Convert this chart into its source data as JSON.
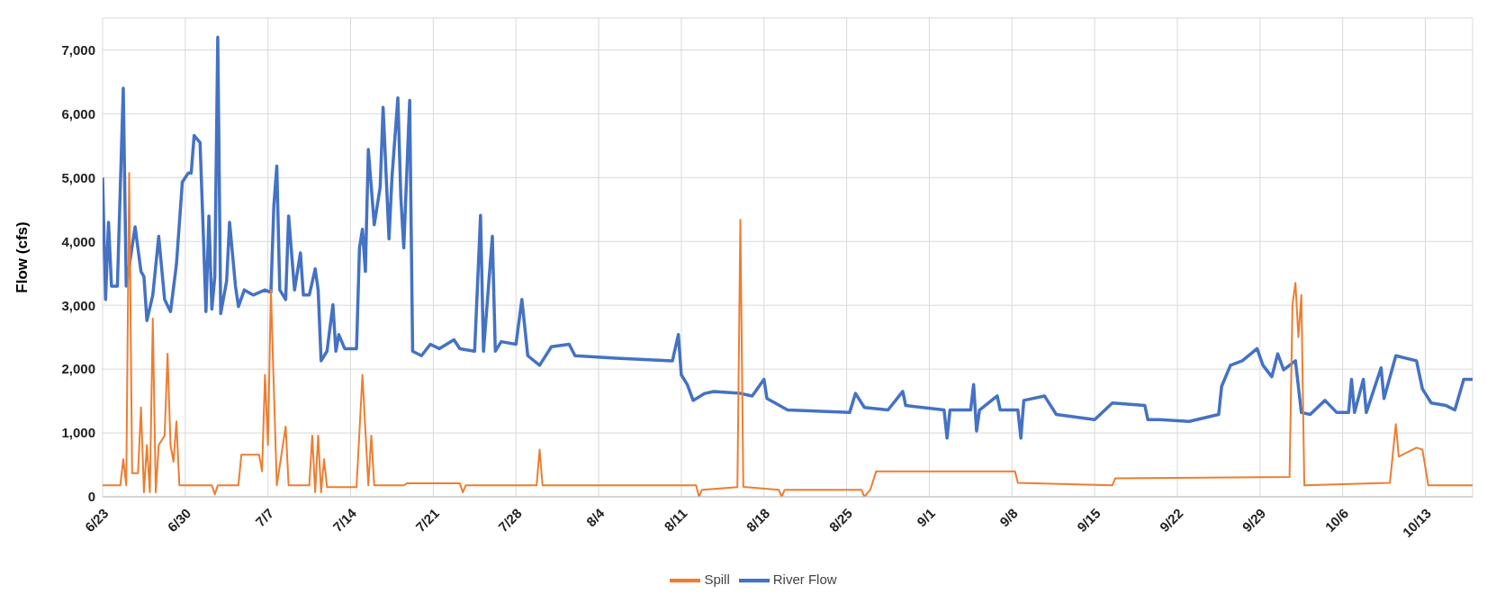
{
  "chart_data": {
    "type": "line",
    "ylabel": "Flow (cfs)",
    "xlim": [
      "--06-23",
      "--10-17"
    ],
    "xticks": [
      {
        "value": "--06-23",
        "label": "6/23"
      },
      {
        "value": "--06-30",
        "label": "6/30"
      },
      {
        "value": "--07-07",
        "label": "7/7"
      },
      {
        "value": "--07-14",
        "label": "7/14"
      },
      {
        "value": "--07-21",
        "label": "7/21"
      },
      {
        "value": "--07-28",
        "label": "7/28"
      },
      {
        "value": "--08-04",
        "label": "8/4"
      },
      {
        "value": "--08-11",
        "label": "8/11"
      },
      {
        "value": "--08-18",
        "label": "8/18"
      },
      {
        "value": "--08-25",
        "label": "8/25"
      },
      {
        "value": "--09-01",
        "label": "9/1"
      },
      {
        "value": "--09-08",
        "label": "9/8"
      },
      {
        "value": "--09-15",
        "label": "9/15"
      },
      {
        "value": "--09-22",
        "label": "9/22"
      },
      {
        "value": "--09-29",
        "label": "9/29"
      },
      {
        "value": "--10-06",
        "label": "10/6"
      },
      {
        "value": "--10-13",
        "label": "10/13"
      }
    ],
    "ylim": [
      0,
      7500
    ],
    "yticks": [
      0,
      {
        "value": 1000,
        "label": "1,000"
      },
      {
        "value": 2000,
        "label": "2,000"
      },
      {
        "value": 3000,
        "label": "3,000"
      },
      {
        "value": 4000,
        "label": "4,000"
      },
      {
        "value": 5000,
        "label": "5,000"
      },
      {
        "value": 6000,
        "label": "6,000"
      },
      {
        "value": 7000,
        "label": "7,000"
      }
    ],
    "grid": true,
    "legend": "bottom",
    "marker": "none",
    "series": [
      {
        "name": "Spill",
        "color": "#ed7d31",
        "x": [
          "--06-23T00:00",
          "--06-24T12:00",
          "--06-24T18:00",
          "--06-25T00:00",
          "--06-25T06:00",
          "--06-25T12:00",
          "--06-26T00:00",
          "--06-26T06:00",
          "--06-26T12:00",
          "--06-26T18:00",
          "--06-27T00:00",
          "--06-27T06:00",
          "--06-27T12:00",
          "--06-27T18:00",
          "--06-28T06:00",
          "--06-28T12:00",
          "--06-28T18:00",
          "--06-29T00:00",
          "--06-29T06:00",
          "--06-29T12:00",
          "--07-02T06:00",
          "--07-02T12:00",
          "--07-02T18:00",
          "--07-04T12:00",
          "--07-04T18:00",
          "--07-06T06:00",
          "--07-06T12:00",
          "--07-06T18:00",
          "--07-07T00:00",
          "--07-07T06:00",
          "--07-07T12:00",
          "--07-07T18:00",
          "--07-08T12:00",
          "--07-08T18:00",
          "--07-10T12:00",
          "--07-10T18:00",
          "--07-11T00:00",
          "--07-11T06:00",
          "--07-11T12:00",
          "--07-11T18:00",
          "--07-12T00:00",
          "--07-14T12:00",
          "--07-15T00:00",
          "--07-15T12:00",
          "--07-15T18:00",
          "--07-16T00:00",
          "--07-18T12:00",
          "--07-18T18:00",
          "--07-23T06:00",
          "--07-23T12:00",
          "--07-23T18:00",
          "--07-29T18:00",
          "--07-30T00:00",
          "--07-30T06:00",
          "--08-06T12:00",
          "--08-12T06:00",
          "--08-12T12:00",
          "--08-12T18:00",
          "--08-15T18:00",
          "--08-16T00:00",
          "--08-16T06:00",
          "--08-16T12:00",
          "--08-19T06:00",
          "--08-19T12:00",
          "--08-19T18:00",
          "--08-26T06:00",
          "--08-26T12:00",
          "--08-27T00:00",
          "--08-27T12:00",
          "--09-08T06:00",
          "--09-08T12:00",
          "--09-16T12:00",
          "--09-16T18:00",
          "--10-01T12:00",
          "--10-01T18:00",
          "--10-02T00:00",
          "--10-02T06:00",
          "--10-02T12:00",
          "--10-02T18:00",
          "--10-10T00:00",
          "--10-10T12:00",
          "--10-10T18:00",
          "--10-12T06:00",
          "--10-12T18:00",
          "--10-13T06:00",
          "--10-17T00:00"
        ],
        "values": [
          180,
          180,
          590,
          180,
          5070,
          370,
          370,
          1400,
          70,
          810,
          70,
          2790,
          70,
          810,
          960,
          2240,
          810,
          550,
          1180,
          180,
          180,
          40,
          180,
          180,
          660,
          660,
          400,
          1910,
          810,
          3240,
          1690,
          180,
          1100,
          180,
          180,
          960,
          70,
          960,
          70,
          590,
          150,
          150,
          1910,
          180,
          960,
          180,
          180,
          210,
          210,
          70,
          180,
          180,
          740,
          180,
          180,
          180,
          0,
          110,
          150,
          4340,
          160,
          150,
          110,
          0,
          110,
          110,
          0,
          110,
          400,
          400,
          220,
          180,
          290,
          310,
          3010,
          3350,
          2500,
          3160,
          180,
          220,
          1140,
          630,
          770,
          740,
          180,
          180
        ]
      },
      {
        "name": "River Flow",
        "color": "#4472c4",
        "x": [
          "--06-23T00:00",
          "--06-23T06:00",
          "--06-23T12:00",
          "--06-23T18:00",
          "--06-24T06:00",
          "--06-24T18:00",
          "--06-25T00:00",
          "--06-25T18:00",
          "--06-26T06:00",
          "--06-26T12:00",
          "--06-26T18:00",
          "--06-27T06:00",
          "--06-27T18:00",
          "--06-28T06:00",
          "--06-28T18:00",
          "--06-29T06:00",
          "--06-29T18:00",
          "--06-30T06:00",
          "--06-30T12:00",
          "--06-30T18:00",
          "--07-01T06:00",
          "--07-01T12:00",
          "--07-01T18:00",
          "--07-02T00:00",
          "--07-02T06:00",
          "--07-02T12:00",
          "--07-02T18:00",
          "--07-03T00:00",
          "--07-03T12:00",
          "--07-03T18:00",
          "--07-04T06:00",
          "--07-04T12:00",
          "--07-05T00:00",
          "--07-05T18:00",
          "--07-06T18:00",
          "--07-07T06:00",
          "--07-07T12:00",
          "--07-07T18:00",
          "--07-08T00:00",
          "--07-08T12:00",
          "--07-08T18:00",
          "--07-09T06:00",
          "--07-09T18:00",
          "--07-10T00:00",
          "--07-10T12:00",
          "--07-11T00:00",
          "--07-11T06:00",
          "--07-11T12:00",
          "--07-12T00:00",
          "--07-12T12:00",
          "--07-12T18:00",
          "--07-13T00:00",
          "--07-13T12:00",
          "--07-14T12:00",
          "--07-14T18:00",
          "--07-15T00:00",
          "--07-15T06:00",
          "--07-15T12:00",
          "--07-16T00:00",
          "--07-16T12:00",
          "--07-16T18:00",
          "--07-17T06:00",
          "--07-17T12:00",
          "--07-18T00:00",
          "--07-18T06:00",
          "--07-18T12:00",
          "--07-19T00:00",
          "--07-19T06:00",
          "--07-20T00:00",
          "--07-20T18:00",
          "--07-21T12:00",
          "--07-22T18:00",
          "--07-23T06:00",
          "--07-24T12:00",
          "--07-25T00:00",
          "--07-25T06:00",
          "--07-26T00:00",
          "--07-26T06:00",
          "--07-26T18:00",
          "--07-28T00:00",
          "--07-28T12:00",
          "--07-29T00:00",
          "--07-30T00:00",
          "--07-31T00:00",
          "--08-01T12:00",
          "--08-02T00:00",
          "--08-05T12:00",
          "--08-10T06:00",
          "--08-10T18:00",
          "--08-11T00:00",
          "--08-11T12:00",
          "--08-12T00:00",
          "--08-13T00:00",
          "--08-13T18:00",
          "--08-16T00:00",
          "--08-17T00:00",
          "--08-18T00:00",
          "--08-18T06:00",
          "--08-20T00:00",
          "--08-25T06:00",
          "--08-25T18:00",
          "--08-26T12:00",
          "--08-28T12:00",
          "--08-29T18:00",
          "--08-30T00:00",
          "--09-02T06:00",
          "--09-02T12:00",
          "--09-02T18:00",
          "--09-04T12:00",
          "--09-04T18:00",
          "--09-05T00:00",
          "--09-05T06:00",
          "--09-06T18:00",
          "--09-07T00:00",
          "--09-08T12:00",
          "--09-08T18:00",
          "--09-09T00:00",
          "--09-10T18:00",
          "--09-11T18:00",
          "--09-15T00:00",
          "--09-16T12:00",
          "--09-19T06:00",
          "--09-19T12:00",
          "--09-20T12:00",
          "--09-23T00:00",
          "--09-25T12:00",
          "--09-25T18:00",
          "--09-26T12:00",
          "--09-27T12:00",
          "--09-28T18:00",
          "--09-29T06:00",
          "--09-30T00:00",
          "--09-30T12:00",
          "--10-01T00:00",
          "--10-02T00:00",
          "--10-02T12:00",
          "--10-03T06:00",
          "--10-04T12:00",
          "--10-05T12:00",
          "--10-06T12:00",
          "--10-06T18:00",
          "--10-07T00:00",
          "--10-07T18:00",
          "--10-08T00:00",
          "--10-09T06:00",
          "--10-09T12:00",
          "--10-10T12:00",
          "--10-12T06:00",
          "--10-12T18:00",
          "--10-13T12:00",
          "--10-14T18:00",
          "--10-15T12:00",
          "--10-16T06:00",
          "--10-17T00:00"
        ],
        "values": [
          5000,
          3090,
          4300,
          3300,
          3300,
          6400,
          3300,
          4230,
          3530,
          3450,
          2760,
          3160,
          4080,
          3090,
          2900,
          3640,
          4930,
          5070,
          5070,
          5660,
          5550,
          4260,
          2900,
          4400,
          2940,
          3450,
          7200,
          2870,
          3380,
          4300,
          3300,
          2980,
          3240,
          3160,
          3240,
          3200,
          4560,
          5180,
          3240,
          3090,
          4400,
          3240,
          3820,
          3160,
          3160,
          3570,
          3240,
          2130,
          2280,
          3010,
          2280,
          2540,
          2320,
          2320,
          3900,
          4190,
          3530,
          5440,
          4260,
          4850,
          6100,
          4040,
          5000,
          6250,
          4700,
          3900,
          6210,
          2280,
          2210,
          2390,
          2320,
          2460,
          2320,
          2280,
          4410,
          2280,
          4080,
          2280,
          2430,
          2390,
          3090,
          2210,
          2060,
          2350,
          2390,
          2210,
          2170,
          2130,
          2540,
          1910,
          1760,
          1510,
          1620,
          1650,
          1620,
          1580,
          1840,
          1540,
          1360,
          1320,
          1620,
          1400,
          1360,
          1650,
          1430,
          1360,
          920,
          1360,
          1360,
          1760,
          1030,
          1360,
          1580,
          1360,
          1360,
          920,
          1510,
          1580,
          1290,
          1210,
          1470,
          1430,
          1210,
          1210,
          1180,
          1290,
          1730,
          2060,
          2130,
          2320,
          2060,
          1880,
          2240,
          1990,
          2130,
          1320,
          1290,
          1510,
          1320,
          1320,
          1840,
          1320,
          1840,
          1320,
          2020,
          1540,
          2210,
          2130,
          1690,
          1470,
          1430,
          1360,
          1840,
          1840
        ]
      }
    ]
  }
}
